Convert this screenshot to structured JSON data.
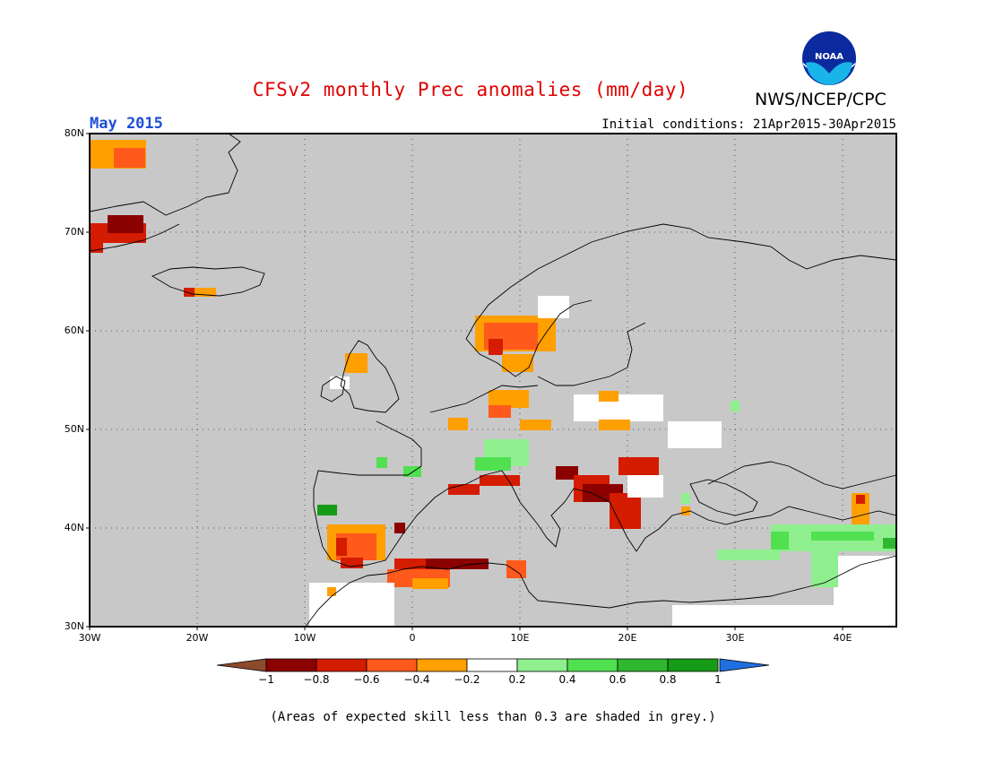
{
  "header": {
    "title": "CFSv2 monthly Prec anomalies (mm/day)",
    "agency": "NWS/NCEP/CPC",
    "logo_text": "NOAA",
    "month": "May 2015",
    "initial_conditions": "Initial conditions: 21Apr2015-30Apr2015"
  },
  "axes": {
    "lat_labels": [
      "80N",
      "70N",
      "60N",
      "50N",
      "40N",
      "30N"
    ],
    "lon_labels": [
      "30W",
      "20W",
      "10W",
      "0",
      "10E",
      "20E",
      "30E",
      "40E"
    ]
  },
  "colorbar": {
    "colors": [
      "#8b0000",
      "#d41c00",
      "#ff5a1c",
      "#ff9f00",
      "#ffffff",
      "#8fef8f",
      "#50e050",
      "#2fb82f",
      "#169b16"
    ],
    "low_arrow_color": "#8b4a2b",
    "high_arrow_color": "#1f6fe0",
    "labels": [
      "−1",
      "−0.8",
      "−0.6",
      "−0.4",
      "−0.2",
      "0.2",
      "0.4",
      "0.6",
      "0.8",
      "1"
    ]
  },
  "map": {
    "background_color": "#c8c8c8",
    "legend_note": "(Areas of expected skill less than 0.3 are shaded in grey.)"
  }
}
